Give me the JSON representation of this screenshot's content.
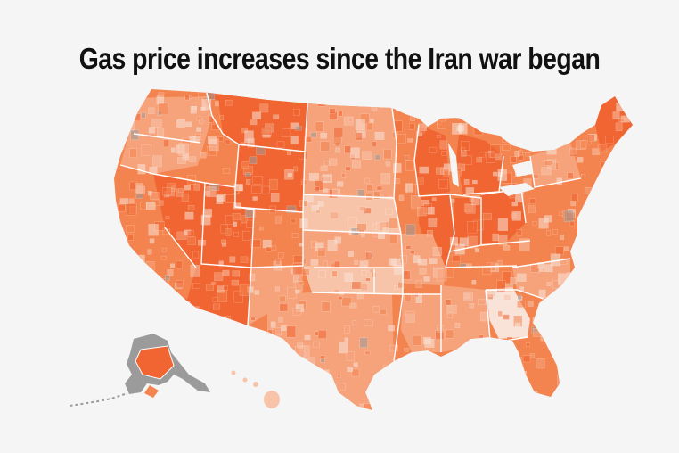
{
  "title": "Gas price increases since the Iran war began",
  "colors": {
    "background": "#f5f5f5",
    "scale": [
      "#f9e3d8",
      "#f8c4a9",
      "#f6a37c",
      "#f4844f",
      "#f06531"
    ],
    "no_data": "#9b9b9b",
    "border": "#ffffff"
  },
  "regions": [
    {
      "name": "contiguous-us",
      "level": 3
    },
    {
      "name": "alaska",
      "level": 4
    },
    {
      "name": "hawaii",
      "level": 1
    },
    {
      "name": "georgia",
      "level": 0
    },
    {
      "name": "wyoming",
      "level": 4
    },
    {
      "name": "utah",
      "level": 4
    },
    {
      "name": "arizona",
      "level": 4
    },
    {
      "name": "nevada",
      "level": 4
    },
    {
      "name": "illinois",
      "level": 4
    },
    {
      "name": "indiana",
      "level": 4
    },
    {
      "name": "michigan",
      "level": 4
    },
    {
      "name": "ohio",
      "level": 4
    },
    {
      "name": "wisconsin",
      "level": 4
    },
    {
      "name": "kentucky",
      "level": 3
    },
    {
      "name": "maine",
      "level": 4
    },
    {
      "name": "montana",
      "level": 4
    },
    {
      "name": "nebraska",
      "level": 1
    },
    {
      "name": "dakotas",
      "level": 2
    },
    {
      "name": "kansas",
      "level": 2
    },
    {
      "name": "texas",
      "level": 2
    },
    {
      "name": "florida",
      "level": 3
    },
    {
      "name": "california",
      "level": 3
    }
  ]
}
